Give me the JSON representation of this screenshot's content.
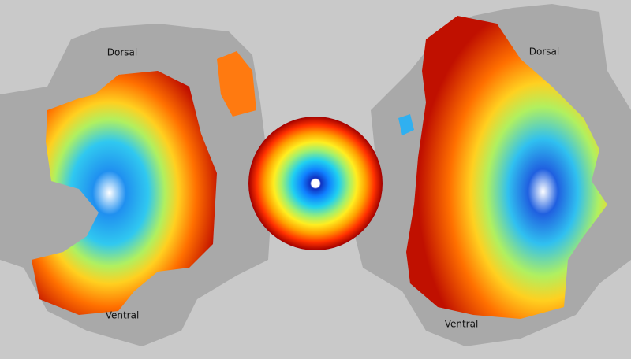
{
  "left_hemisphere": {
    "dorsal_label": "Dorsal",
    "ventral_label": "Ventral"
  },
  "right_hemisphere": {
    "dorsal_label": "Dorsal",
    "ventral_label": "Ventral"
  }
}
